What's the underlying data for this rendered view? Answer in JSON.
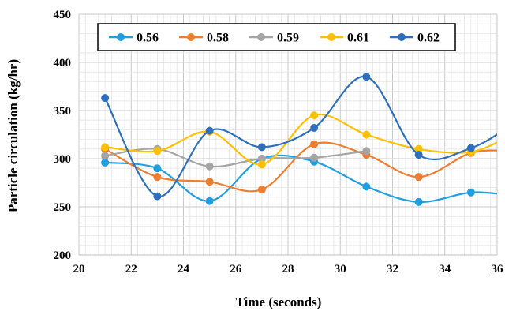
{
  "chart_data": {
    "type": "line",
    "xlabel": "Time (seconds)",
    "ylabel": "Particle circulation (kg/hr)",
    "xlim": [
      20,
      36
    ],
    "ylim": [
      200,
      450
    ],
    "xticks": [
      20,
      22,
      24,
      26,
      28,
      30,
      32,
      34,
      36
    ],
    "yticks": [
      200,
      250,
      300,
      350,
      400,
      450
    ],
    "smooth": true,
    "grid": true,
    "legend_position": "top",
    "series": [
      {
        "name": "0.56",
        "color": "#1f9ee0",
        "x": [
          21,
          23,
          25,
          27,
          29,
          31,
          33,
          35,
          36.5
        ],
        "y": [
          296,
          290,
          256,
          300,
          297,
          271,
          255,
          265,
          262
        ]
      },
      {
        "name": "0.58",
        "color": "#ed7d31",
        "x": [
          21,
          23,
          25,
          27,
          29,
          31,
          33,
          35,
          36.5
        ],
        "y": [
          310,
          281,
          276,
          268,
          315,
          304,
          281,
          306,
          308
        ]
      },
      {
        "name": "0.59",
        "color": "#a5a5a5",
        "x": [
          21,
          23,
          25,
          27,
          29,
          31
        ],
        "y": [
          303,
          310,
          292,
          300,
          301,
          308
        ]
      },
      {
        "name": "0.61",
        "color": "#ffc000",
        "x": [
          21,
          23,
          25,
          27,
          29,
          31,
          33,
          35,
          36.5
        ],
        "y": [
          312,
          308,
          328,
          294,
          345,
          325,
          310,
          307,
          324
        ]
      },
      {
        "name": "0.62",
        "color": "#2e6fbd",
        "x": [
          21,
          23,
          25,
          27,
          29,
          31,
          33,
          35,
          36.5
        ],
        "y": [
          363,
          261,
          329,
          312,
          332,
          385,
          304,
          311,
          334
        ]
      }
    ]
  }
}
